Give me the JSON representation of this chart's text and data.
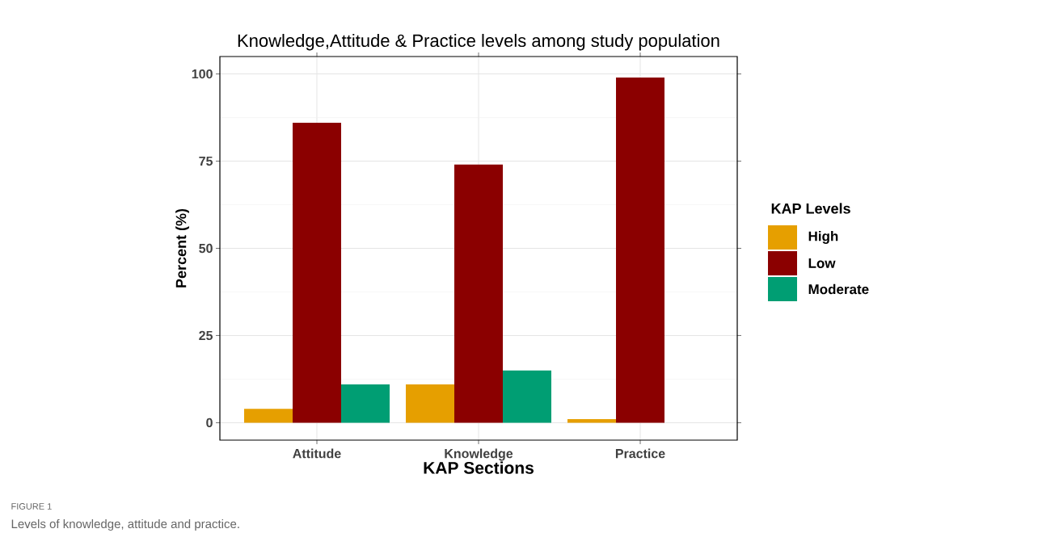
{
  "chart_data": {
    "type": "bar",
    "title": "Knowledge,Attitude & Practice levels among study population",
    "xlabel": "KAP Sections",
    "ylabel": "Percent (%)",
    "legend_title": "KAP Levels",
    "categories": [
      "Attitude",
      "Knowledge",
      "Practice"
    ],
    "series": [
      {
        "name": "High",
        "color": "#e69f00",
        "values": [
          4,
          11,
          1
        ]
      },
      {
        "name": "Low",
        "color": "#8b0000",
        "values": [
          86,
          74,
          99
        ]
      },
      {
        "name": "Moderate",
        "color": "#009e73",
        "values": [
          11,
          15,
          0
        ]
      }
    ],
    "ylim": [
      -5,
      105
    ],
    "yticks": [
      0,
      25,
      50,
      75,
      100
    ],
    "grid": true,
    "legend": "right",
    "annotations": [
      "FIGURE 1",
      "Levels of knowledge, attitude and practice."
    ]
  }
}
